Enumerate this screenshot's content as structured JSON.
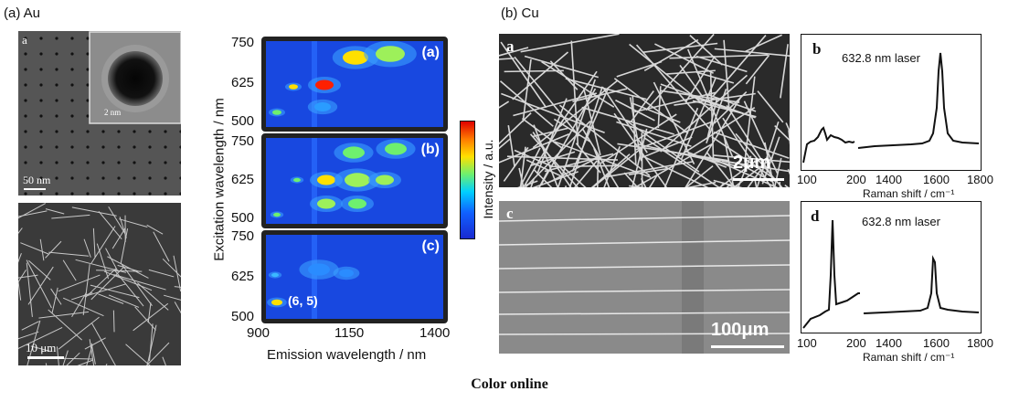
{
  "panel_a": {
    "title": "(a) Au",
    "tem_top": {
      "letter": "a",
      "scale": "50 nm",
      "inset_scale": "2 nm"
    },
    "sem_bottom": {
      "scale": "10 μm"
    },
    "pl_map": {
      "subpanels": [
        "(a)",
        "(b)",
        "(c)"
      ],
      "annotation": "(6, 5)",
      "y_ticks": [
        "750",
        "625",
        "500"
      ],
      "x_ticks": [
        "900",
        "1150",
        "1400"
      ],
      "ylabel": "Excitation wavelength / nm",
      "xlabel": "Emission wavelength / nm",
      "colorbar_label": "Intensity / a.u."
    }
  },
  "panel_b": {
    "title": "(b) Cu",
    "sem_top": {
      "letter": "a",
      "scale": "2μm"
    },
    "sem_bottom": {
      "letter": "c",
      "scale": "100μm"
    },
    "raman_top": {
      "letter": "b",
      "laser": "632.8 nm laser",
      "x_ticks": [
        "100",
        "200",
        "1400",
        "1600",
        "1800"
      ],
      "xlabel": "Raman shift / cm⁻¹"
    },
    "raman_bottom": {
      "letter": "d",
      "laser": "632.8 nm laser",
      "x_ticks": [
        "100",
        "200",
        "1400",
        "1600",
        "1800"
      ],
      "xlabel": "Raman shift / cm⁻¹"
    }
  },
  "caption": "Color online"
}
